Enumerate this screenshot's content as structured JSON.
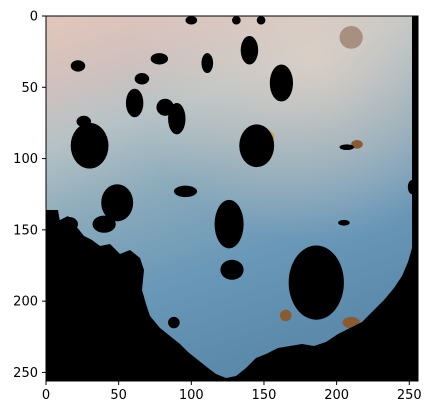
{
  "chart_data": {
    "type": "heatmap",
    "title": "",
    "xlabel": "",
    "ylabel": "",
    "xlim": [
      0,
      256
    ],
    "ylim": [
      256,
      0
    ],
    "x_ticks": [
      0,
      50,
      100,
      150,
      200,
      250
    ],
    "y_ticks": [
      0,
      50,
      100,
      150,
      200,
      250
    ],
    "x_tick_labels": [
      "0",
      "50",
      "100",
      "150",
      "200",
      "250"
    ],
    "y_tick_labels": [
      "0",
      "50",
      "100",
      "150",
      "200",
      "250"
    ],
    "grid": false,
    "colors": {
      "sky_top": "#e3c7bb",
      "sky_mid": "#b9c2c4",
      "water_upper": "#8aaabb",
      "water_lower": "#6a98b8",
      "water_deep": "#5b8aaa",
      "mask": "#000000",
      "spot_brown": "#8a5a30",
      "spot_yellow": "#c8a030"
    },
    "masked_regions": [
      {
        "shape": "blob",
        "cx": 100,
        "cy": 3,
        "rx": 4,
        "ry": 3
      },
      {
        "shape": "blob",
        "cx": 131,
        "cy": 3,
        "rx": 3,
        "ry": 3
      },
      {
        "shape": "blob",
        "cx": 148,
        "cy": 3,
        "rx": 3,
        "ry": 3
      },
      {
        "shape": "blob",
        "cx": 140,
        "cy": 24,
        "rx": 6,
        "ry": 10
      },
      {
        "shape": "blob",
        "cx": 22,
        "cy": 35,
        "rx": 5,
        "ry": 4
      },
      {
        "shape": "blob",
        "cx": 78,
        "cy": 30,
        "rx": 6,
        "ry": 4
      },
      {
        "shape": "blob",
        "cx": 111,
        "cy": 33,
        "rx": 4,
        "ry": 7
      },
      {
        "shape": "blob",
        "cx": 66,
        "cy": 44,
        "rx": 5,
        "ry": 4
      },
      {
        "shape": "blob",
        "cx": 162,
        "cy": 47,
        "rx": 8,
        "ry": 13
      },
      {
        "shape": "blob",
        "cx": 61,
        "cy": 61,
        "rx": 6,
        "ry": 10
      },
      {
        "shape": "blob",
        "cx": 82,
        "cy": 64,
        "rx": 6,
        "ry": 6
      },
      {
        "shape": "blob",
        "cx": 90,
        "cy": 72,
        "rx": 6,
        "ry": 11
      },
      {
        "shape": "blob",
        "cx": 30,
        "cy": 91,
        "rx": 13,
        "ry": 16
      },
      {
        "shape": "blob",
        "cx": 145,
        "cy": 91,
        "rx": 12,
        "ry": 15
      },
      {
        "shape": "blob",
        "cx": 207,
        "cy": 92,
        "rx": 5,
        "ry": 2
      },
      {
        "shape": "blob",
        "cx": 26,
        "cy": 74,
        "rx": 5,
        "ry": 4
      },
      {
        "shape": "blob",
        "cx": 96,
        "cy": 123,
        "rx": 8,
        "ry": 4
      },
      {
        "shape": "blob",
        "cx": 49,
        "cy": 131,
        "rx": 11,
        "ry": 13
      },
      {
        "shape": "blob",
        "cx": 126,
        "cy": 146,
        "rx": 10,
        "ry": 17
      },
      {
        "shape": "blob",
        "cx": 128,
        "cy": 178,
        "rx": 8,
        "ry": 7
      },
      {
        "shape": "blob",
        "cx": 186,
        "cy": 187,
        "rx": 19,
        "ry": 26
      },
      {
        "shape": "blob",
        "cx": 88,
        "cy": 215,
        "rx": 4,
        "ry": 4
      },
      {
        "shape": "blob",
        "cx": 16,
        "cy": 146,
        "rx": 6,
        "ry": 5
      },
      {
        "shape": "blob",
        "cx": 40,
        "cy": 146,
        "rx": 8,
        "ry": 6
      },
      {
        "shape": "blob",
        "cx": 205,
        "cy": 145,
        "rx": 4,
        "ry": 2
      },
      {
        "shape": "blob",
        "cx": 252,
        "cy": 120,
        "rx": 3,
        "ry": 5
      }
    ],
    "spots": [
      {
        "cx": 148,
        "cy": 85,
        "rx": 9,
        "ry": 6,
        "color": "#c8a030"
      },
      {
        "cx": 214,
        "cy": 90,
        "rx": 4,
        "ry": 3,
        "color": "#8a5a30"
      },
      {
        "cx": 210,
        "cy": 15,
        "rx": 8,
        "ry": 8,
        "color": "#a89080"
      },
      {
        "cx": 165,
        "cy": 210,
        "rx": 4,
        "ry": 4,
        "color": "#8a5a30"
      },
      {
        "cx": 210,
        "cy": 215,
        "rx": 6,
        "ry": 4,
        "color": "#8a5a30"
      }
    ]
  }
}
